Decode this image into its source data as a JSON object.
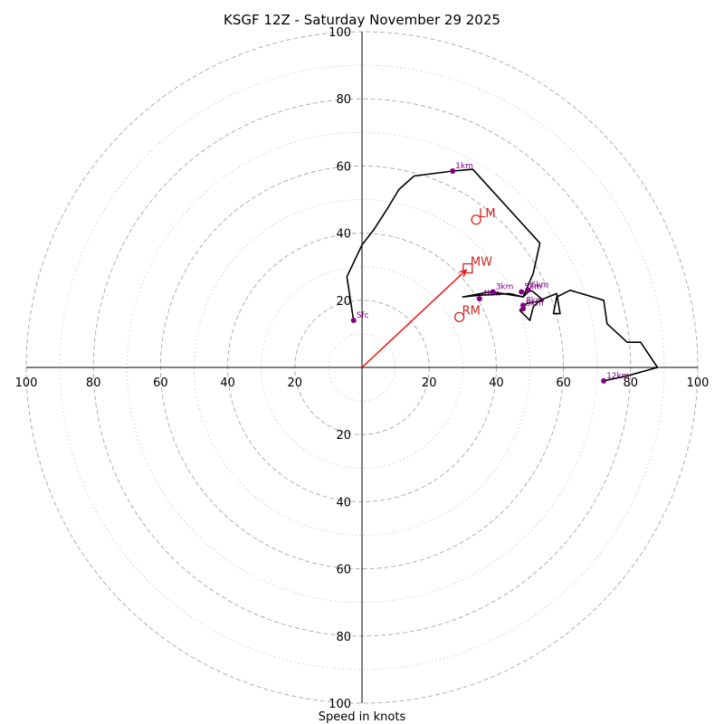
{
  "chart_data": {
    "type": "hodograph",
    "title": "KSGF 12Z - Saturday November 29 2025",
    "xlabel": "Speed in knots",
    "range_knots": 100,
    "ring_major_step": 20,
    "ring_minor_offset": 10,
    "tick_values": [
      20,
      40,
      60,
      80,
      100
    ],
    "colors": {
      "trace": "#000000",
      "km_marker": "#800080",
      "storm_motion": "#cc2222",
      "mean_wind_vector": "#ee1111",
      "ring_major": "#b0b0b0",
      "ring_minor": "#cfcfcf"
    },
    "trace": [
      [
        -2.5,
        14
      ],
      [
        -4.5,
        27
      ],
      [
        0,
        36.5
      ],
      [
        3.5,
        41
      ],
      [
        8,
        48
      ],
      [
        11,
        53
      ],
      [
        15.5,
        57
      ],
      [
        27,
        58.5
      ],
      [
        33,
        59
      ],
      [
        53,
        37
      ],
      [
        51,
        28
      ],
      [
        48,
        21
      ],
      [
        44,
        22
      ],
      [
        35,
        21.5
      ],
      [
        30,
        21
      ],
      [
        38,
        22.5
      ],
      [
        42,
        22
      ],
      [
        48,
        21
      ],
      [
        50,
        23
      ],
      [
        51,
        22.5
      ],
      [
        54,
        20
      ],
      [
        49,
        19
      ],
      [
        47,
        17
      ],
      [
        50,
        14
      ],
      [
        51,
        18
      ],
      [
        53,
        20
      ],
      [
        58,
        22
      ],
      [
        59,
        16
      ],
      [
        57,
        16
      ],
      [
        58,
        21
      ],
      [
        62,
        23
      ],
      [
        72,
        20
      ],
      [
        73,
        13
      ],
      [
        79,
        7.5
      ],
      [
        83,
        7.5
      ],
      [
        88,
        0
      ],
      [
        79,
        -2.5
      ],
      [
        72,
        -4
      ]
    ],
    "km_markers": [
      {
        "label": "Sfc",
        "u": -2.5,
        "v": 14
      },
      {
        "label": "1km",
        "u": 27,
        "v": 58.5
      },
      {
        "label": "3km",
        "u": 39,
        "v": 22.5
      },
      {
        "label": "4km",
        "u": 35,
        "v": 20.5
      },
      {
        "label": "5km",
        "u": 47.5,
        "v": 22.5
      },
      {
        "label": "6km",
        "u": 49.5,
        "v": 23
      },
      {
        "label": "8km",
        "u": 48,
        "v": 18.5
      },
      {
        "label": "9km",
        "u": 48,
        "v": 17.5
      },
      {
        "label": "12km",
        "u": 72,
        "v": -4
      }
    ],
    "storm_motion": [
      {
        "label": "LM",
        "u": 34,
        "v": 44,
        "marker": "circle"
      },
      {
        "label": "MW",
        "u": 31.5,
        "v": 29.5,
        "marker": "square"
      },
      {
        "label": "RM",
        "u": 29,
        "v": 15,
        "marker": "circle"
      }
    ],
    "mean_wind_vector": {
      "u": 31,
      "v": 29
    }
  }
}
